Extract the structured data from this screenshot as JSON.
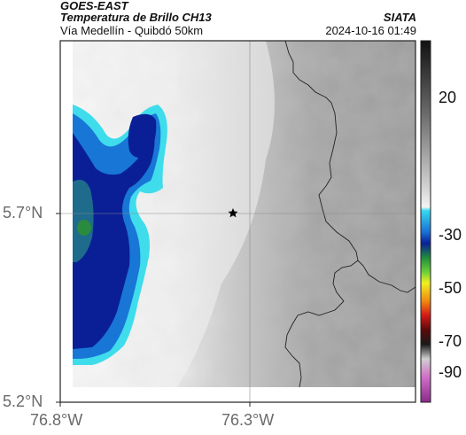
{
  "header": {
    "line1": "GOES-EAST",
    "line2": "Temperatura de Brillo CH13",
    "line3": "Vía Medellín - Quibdó 50km",
    "source": "SIATA",
    "datetime": "2024-10-16 01:49"
  },
  "axes": {
    "y_ticks": [
      "5.7°N",
      "5.2°N"
    ],
    "x_ticks": [
      "76.8°W",
      "76.3°W"
    ]
  },
  "colorbar": {
    "labels": [
      "20",
      "-30",
      "-50",
      "-70",
      "-90"
    ],
    "range": [
      -95,
      40
    ]
  },
  "marker": {
    "icon": "star-icon",
    "color": "#000000"
  },
  "colors": {
    "deep_cold": "#0a1a8a",
    "cold": "#1a6bd0",
    "cyan": "#2fd8e8",
    "warm_gray": "#a8a8a8",
    "light": "#f2f2f2"
  }
}
